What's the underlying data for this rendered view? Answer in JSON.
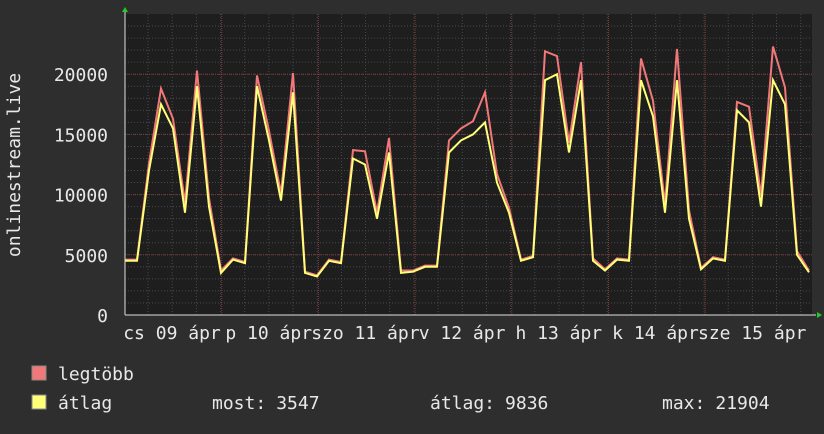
{
  "chart_data": {
    "type": "line",
    "y_label": "onlinestream.live",
    "x_labels": [
      "cs 09 ápr",
      "p 10 ápr",
      "szo 11 ápr",
      "v 12 ápr",
      "h 13 ápr",
      "k 14 ápr",
      "sze 15 ápr"
    ],
    "ylim": [
      0,
      25000
    ],
    "yticks": [
      0,
      5000,
      10000,
      15000,
      20000
    ],
    "series": [
      {
        "name": "legtöbb",
        "color": "#f07878",
        "values": [
          4600,
          4600,
          12600,
          18800,
          16300,
          9300,
          20300,
          9700,
          3700,
          4700,
          4400,
          19900,
          15300,
          10100,
          20100,
          3600,
          3300,
          4600,
          4400,
          13700,
          13600,
          8500,
          14700,
          3700,
          3700,
          4100,
          4100,
          14500,
          15500,
          16100,
          18500,
          11700,
          8900,
          4600,
          4900,
          21900,
          21500,
          14300,
          21000,
          4700,
          3800,
          4700,
          4600,
          21300,
          17800,
          9200,
          22100,
          8700,
          3900,
          4800,
          4600,
          17700,
          17300,
          9900,
          22300,
          18900,
          5300,
          3700
        ]
      },
      {
        "name": "átlag",
        "color": "#ffff78",
        "values": [
          4500,
          4500,
          12000,
          17500,
          15500,
          8500,
          19000,
          9000,
          3500,
          4600,
          4300,
          19000,
          14500,
          9500,
          18500,
          3500,
          3200,
          4500,
          4300,
          13000,
          12500,
          8000,
          13500,
          3500,
          3600,
          4000,
          4000,
          13500,
          14500,
          15000,
          16000,
          11000,
          8500,
          4500,
          4800,
          19500,
          20000,
          13500,
          19500,
          4500,
          3700,
          4600,
          4500,
          19500,
          16500,
          8500,
          19500,
          8000,
          3800,
          4700,
          4500,
          17000,
          16000,
          9000,
          19500,
          17500,
          5000,
          3547
        ]
      }
    ],
    "stats": [
      {
        "label": "most:",
        "value": 3547
      },
      {
        "label": "átlag:",
        "value": 9836
      },
      {
        "label": "max:",
        "value": 21904
      }
    ],
    "grid": true
  }
}
